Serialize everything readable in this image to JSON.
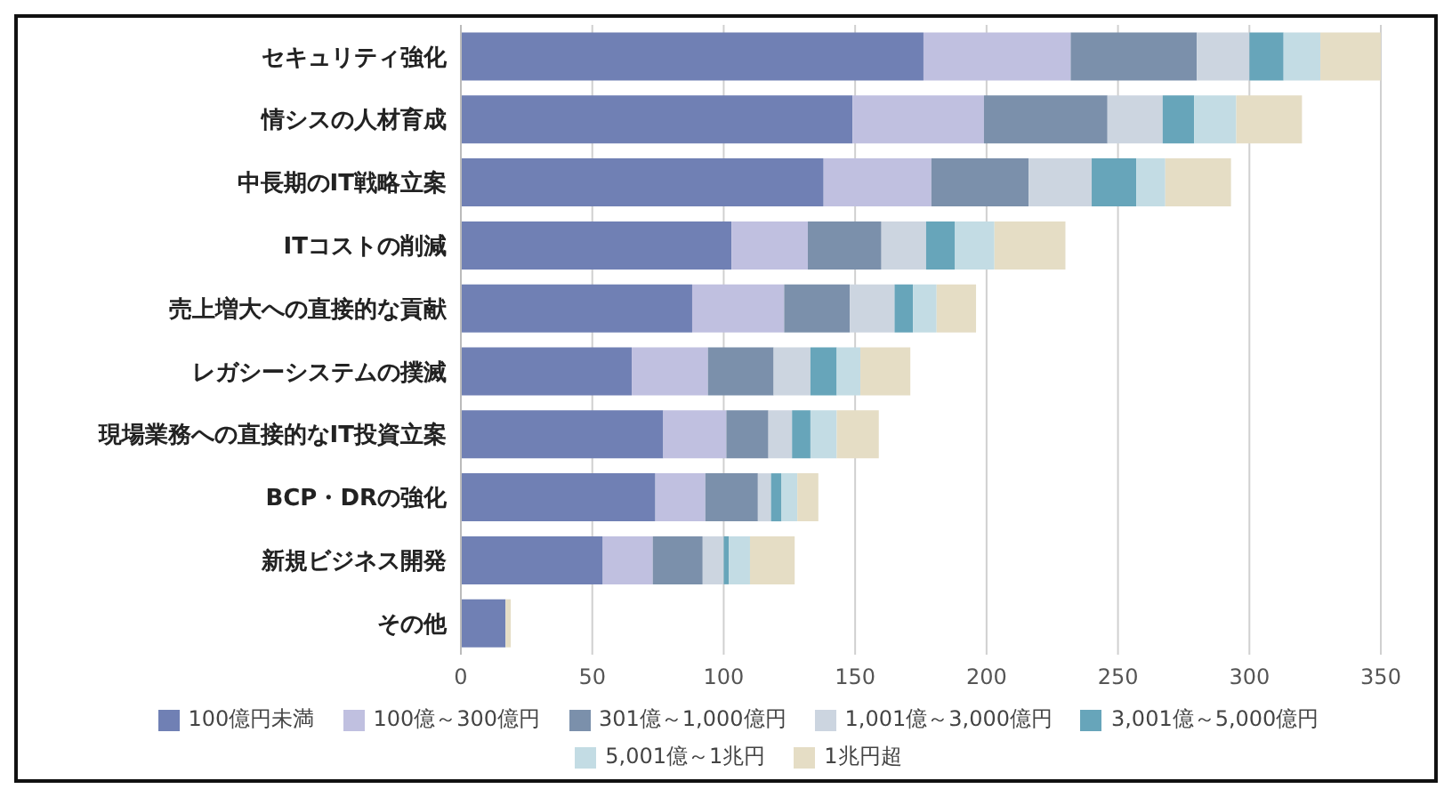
{
  "chart_data": {
    "type": "bar",
    "orientation": "horizontal",
    "stacked": true,
    "categories": [
      "セキュリティ強化",
      "情シスの人材育成",
      "中長期のIT戦略立案",
      "ITコストの削減",
      "売上増大への直接的な貢献",
      "レガシーシステムの撲滅",
      "現場業務への直接的なIT投資立案",
      "BCP・DRの強化",
      "新規ビジネス開発",
      "その他"
    ],
    "series": [
      {
        "name": "100億円未満",
        "color": "#7080b4",
        "values": [
          176,
          149,
          138,
          103,
          88,
          65,
          77,
          74,
          54,
          17
        ]
      },
      {
        "name": "100億～300億円",
        "color": "#c0c0e0",
        "values": [
          56,
          50,
          41,
          29,
          35,
          29,
          24,
          19,
          19,
          0
        ]
      },
      {
        "name": "301億～1,000億円",
        "color": "#7b90ab",
        "values": [
          48,
          47,
          37,
          28,
          25,
          25,
          16,
          20,
          19,
          0
        ]
      },
      {
        "name": "1,001億～3,000億円",
        "color": "#ccd5e0",
        "values": [
          20,
          21,
          24,
          17,
          17,
          14,
          9,
          5,
          8,
          null
        ]
      },
      {
        "name": "3,001億～5,000億円",
        "color": "#67a5ba",
        "values": [
          13,
          12,
          17,
          11,
          7,
          10,
          7,
          4,
          2,
          0
        ]
      },
      {
        "name": "5,001億～1兆円",
        "color": "#c3dce4",
        "values": [
          14,
          16,
          11,
          15,
          9,
          9,
          10,
          6,
          8,
          0
        ]
      },
      {
        "name": "1兆円超",
        "color": "#e5ddc5",
        "values": [
          24,
          25,
          25,
          27,
          15,
          19,
          16,
          8,
          17,
          2
        ]
      }
    ],
    "xlim": [
      0,
      350
    ],
    "xticks": [
      0,
      50,
      100,
      150,
      200,
      250,
      300,
      350
    ],
    "grid": "x",
    "legend": "bottom"
  }
}
